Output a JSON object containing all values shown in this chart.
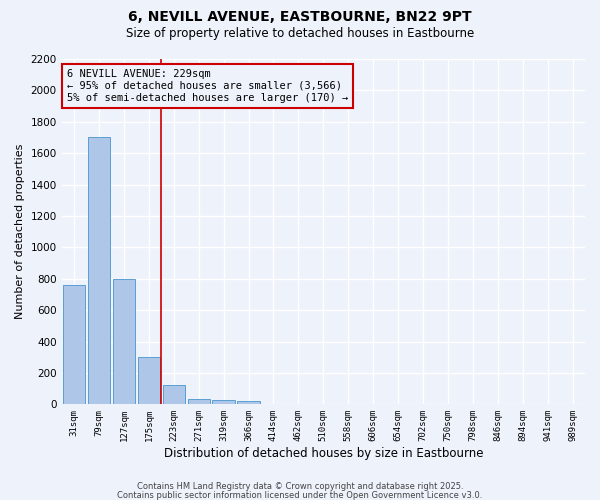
{
  "title1": "6, NEVILL AVENUE, EASTBOURNE, BN22 9PT",
  "title2": "Size of property relative to detached houses in Eastbourne",
  "xlabel": "Distribution of detached houses by size in Eastbourne",
  "ylabel": "Number of detached properties",
  "categories": [
    "31sqm",
    "79sqm",
    "127sqm",
    "175sqm",
    "223sqm",
    "271sqm",
    "319sqm",
    "366sqm",
    "414sqm",
    "462sqm",
    "510sqm",
    "558sqm",
    "606sqm",
    "654sqm",
    "702sqm",
    "750sqm",
    "798sqm",
    "846sqm",
    "894sqm",
    "941sqm",
    "989sqm"
  ],
  "values": [
    760,
    1700,
    800,
    300,
    120,
    35,
    28,
    20,
    0,
    0,
    5,
    0,
    0,
    0,
    0,
    0,
    0,
    0,
    0,
    0,
    0
  ],
  "bar_color": "#aec6e8",
  "bar_edge_color": "#5a9fd4",
  "vline_color": "#cc0000",
  "vline_x": 3.5,
  "annotation_line1": "6 NEVILL AVENUE: 229sqm",
  "annotation_line2": "← 95% of detached houses are smaller (3,566)",
  "annotation_line3": "5% of semi-detached houses are larger (170) →",
  "ylim": [
    0,
    2200
  ],
  "yticks": [
    0,
    200,
    400,
    600,
    800,
    1000,
    1200,
    1400,
    1600,
    1800,
    2000,
    2200
  ],
  "bg_color": "#eef2fb",
  "grid_color": "#ffffff",
  "footer1": "Contains HM Land Registry data © Crown copyright and database right 2025.",
  "footer2": "Contains public sector information licensed under the Open Government Licence v3.0."
}
